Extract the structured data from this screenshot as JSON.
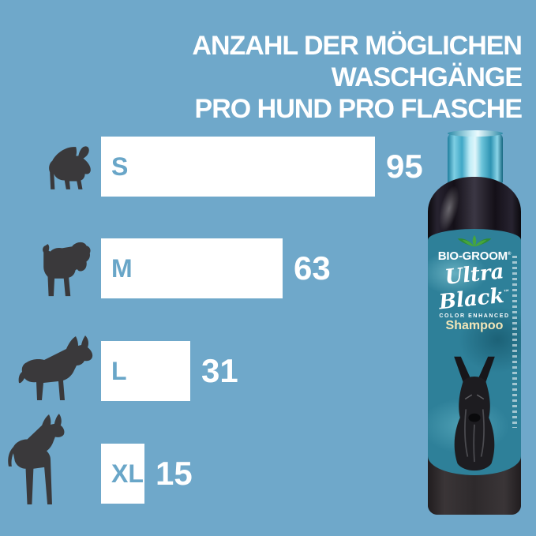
{
  "title": {
    "line1": "ANZAHL DER MÖGLICHEN WASCHGÄNGE",
    "line2": "PRO HUND PRO FLASCHE"
  },
  "chart_data": {
    "type": "bar",
    "orientation": "horizontal",
    "title": "ANZAHL DER MÖGLICHEN WASCHGÄNGE PRO HUND PRO FLASCHE",
    "categories": [
      "S",
      "M",
      "L",
      "XL"
    ],
    "values": [
      95,
      63,
      31,
      15
    ],
    "xlabel": "",
    "ylabel": "",
    "xlim": [
      0,
      100
    ],
    "grid": false,
    "legend": false,
    "bar_color": "#FFFFFF",
    "value_label_color": "#FFFFFF",
    "category_label_color": "#69A6C8",
    "category_icons": [
      "french-bulldog",
      "schnauzer",
      "german-shepherd",
      "great-dane"
    ]
  },
  "rows": [
    {
      "label": "S",
      "value": "95",
      "dog": "french-bulldog"
    },
    {
      "label": "M",
      "value": "63",
      "dog": "schnauzer"
    },
    {
      "label": "L",
      "value": "31",
      "dog": "german-shepherd"
    },
    {
      "label": "XL",
      "value": "15",
      "dog": "great-dane"
    }
  ],
  "product": {
    "brand": "BIO-GROOM",
    "registered_mark": "®",
    "name_line1": "Ultra",
    "name_line2": "Black",
    "trademark": "™",
    "subtitle": "COLOR ENHANCED",
    "type": "Shampoo"
  },
  "colors": {
    "background": "#6FA8CA",
    "bar": "#FFFFFF",
    "bar_label": "#69A6C8",
    "value_text": "#FFFFFF",
    "dog_silhouette": "#3A393B",
    "bottle_black": "#141018",
    "bottle_cap_teal": "#4FB3CF",
    "label_teal": "#2E8099",
    "shampoo_text": "#F2E6B8",
    "emblem_green": "#3E9C3C"
  }
}
